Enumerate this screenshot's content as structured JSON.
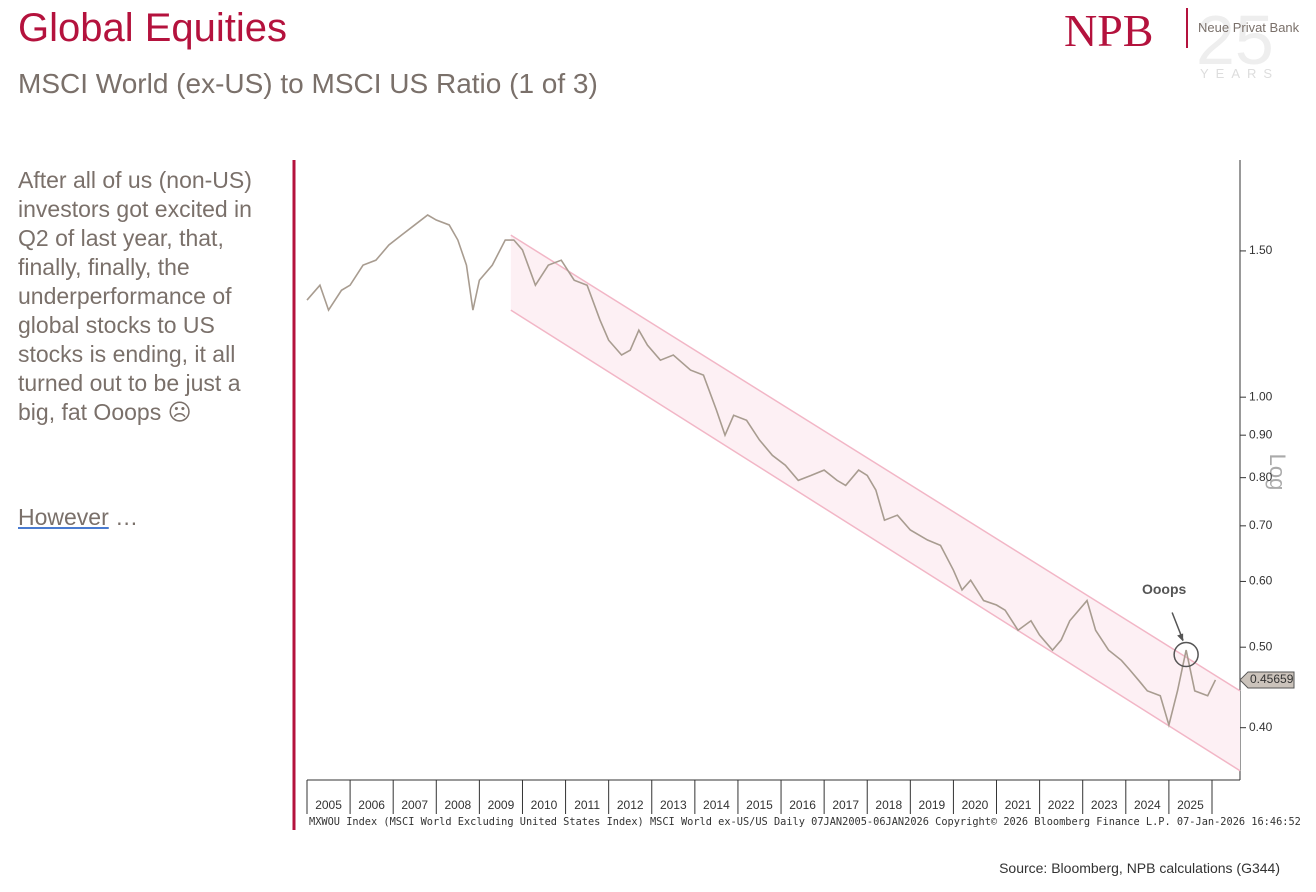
{
  "header": {
    "title": "Global Equities",
    "subtitle": "MSCI World (ex-US) to MSCI US Ratio (1 of 3)",
    "logo": "NPB",
    "bank_name": "Neue Privat Bank",
    "anniversary": "25",
    "anniversary_label": "YEARS"
  },
  "body": {
    "paragraph": "After all of us (non-US) investors got excited in Q2 of last year, that, finally, finally, the underperformance of global stocks to US stocks is ending, it all turned out to be just a big, fat Ooops ☹",
    "link": "However",
    "ellipsis": " …"
  },
  "source": "Source: Bloomberg, NPB calculations (G344)",
  "chart_data": {
    "type": "line",
    "y_label": "Log",
    "log_scale": true,
    "footnote": "MXWOU Index (MSCI World Excluding United States Index) MSCI World ex-US/US Daily 07JAN2005-06JAN2026 Copyright© 2026 Bloomberg Finance L.P. 07-Jan-2026 16:46:52",
    "xlim": [
      2005,
      2026.65
    ],
    "ylim": [
      0.346,
      1.93
    ],
    "xticks": [
      {
        "value": 2005.5,
        "label": "2005"
      },
      {
        "value": 2006.5,
        "label": "2006"
      },
      {
        "value": 2007.5,
        "label": "2007"
      },
      {
        "value": 2008.5,
        "label": "2008"
      },
      {
        "value": 2009.5,
        "label": "2009"
      },
      {
        "value": 2010.5,
        "label": "2010"
      },
      {
        "value": 2011.5,
        "label": "2011"
      },
      {
        "value": 2012.5,
        "label": "2012"
      },
      {
        "value": 2013.5,
        "label": "2013"
      },
      {
        "value": 2014.5,
        "label": "2014"
      },
      {
        "value": 2015.5,
        "label": "2015"
      },
      {
        "value": 2016.5,
        "label": "2016"
      },
      {
        "value": 2017.5,
        "label": "2017"
      },
      {
        "value": 2018.5,
        "label": "2018"
      },
      {
        "value": 2019.5,
        "label": "2019"
      },
      {
        "value": 2020.5,
        "label": "2020"
      },
      {
        "value": 2021.5,
        "label": "2021"
      },
      {
        "value": 2022.5,
        "label": "2022"
      },
      {
        "value": 2023.5,
        "label": "2023"
      },
      {
        "value": 2024.5,
        "label": "2024"
      },
      {
        "value": 2025.5,
        "label": "2025"
      }
    ],
    "yticks": [
      {
        "value": 0.4,
        "label": "0.40"
      },
      {
        "value": 0.5,
        "label": "0.50"
      },
      {
        "value": 0.6,
        "label": "0.60"
      },
      {
        "value": 0.7,
        "label": "0.70"
      },
      {
        "value": 0.8,
        "label": "0.80"
      },
      {
        "value": 0.9,
        "label": "0.90"
      },
      {
        "value": 1.0,
        "label": "1.00"
      },
      {
        "value": 1.5,
        "label": "1.50"
      }
    ],
    "series": [
      {
        "color": "#a89c90",
        "x": [
          2005.0,
          2005.3,
          2005.5,
          2005.8,
          2006.0,
          2006.3,
          2006.6,
          2006.9,
          2007.2,
          2007.5,
          2007.8,
          2008.0,
          2008.3,
          2008.5,
          2008.7,
          2008.85,
          2009.0,
          2009.3,
          2009.6,
          2009.8,
          2010.0,
          2010.3,
          2010.6,
          2010.9,
          2011.2,
          2011.5,
          2011.8,
          2012.0,
          2012.3,
          2012.5,
          2012.7,
          2012.9,
          2013.2,
          2013.5,
          2013.9,
          2014.2,
          2014.5,
          2014.7,
          2014.9,
          2015.2,
          2015.5,
          2015.8,
          2016.1,
          2016.4,
          2016.7,
          2017.0,
          2017.3,
          2017.5,
          2017.8,
          2018.0,
          2018.2,
          2018.4,
          2018.7,
          2019.0,
          2019.4,
          2019.7,
          2020.0,
          2020.2,
          2020.4,
          2020.7,
          2021.0,
          2021.2,
          2021.5,
          2021.8,
          2022.0,
          2022.3,
          2022.5,
          2022.7,
          2023.1,
          2023.3,
          2023.6,
          2023.9,
          2024.1,
          2024.3,
          2024.5,
          2024.8,
          2025.0,
          2025.2,
          2025.4,
          2025.6,
          2025.9,
          2026.08
        ],
        "values": [
          1.309,
          1.364,
          1.273,
          1.345,
          1.364,
          1.442,
          1.462,
          1.525,
          1.568,
          1.612,
          1.657,
          1.634,
          1.612,
          1.546,
          1.442,
          1.273,
          1.383,
          1.442,
          1.546,
          1.546,
          1.504,
          1.364,
          1.442,
          1.462,
          1.383,
          1.364,
          1.238,
          1.171,
          1.124,
          1.139,
          1.204,
          1.155,
          1.108,
          1.124,
          1.078,
          1.063,
          0.965,
          0.9,
          0.951,
          0.938,
          0.888,
          0.851,
          0.828,
          0.794,
          0.805,
          0.817,
          0.794,
          0.783,
          0.817,
          0.805,
          0.773,
          0.711,
          0.721,
          0.692,
          0.673,
          0.663,
          0.619,
          0.586,
          0.602,
          0.569,
          0.562,
          0.554,
          0.524,
          0.538,
          0.517,
          0.496,
          0.51,
          0.538,
          0.569,
          0.524,
          0.496,
          0.482,
          0.469,
          0.456,
          0.443,
          0.437,
          0.403,
          0.443,
          0.496,
          0.443,
          0.437,
          0.45659
        ]
      }
    ],
    "last_value": 0.45659,
    "channel": {
      "x": [
        2009.73,
        2026.65
      ],
      "upper": [
        1.567,
        0.443
      ],
      "lower": [
        1.273,
        0.355
      ],
      "color": "#f2b6c6",
      "fill": "#fdf0f4"
    },
    "annotation": {
      "text": "Ooops",
      "x": 2025.4,
      "y": 0.49
    }
  }
}
